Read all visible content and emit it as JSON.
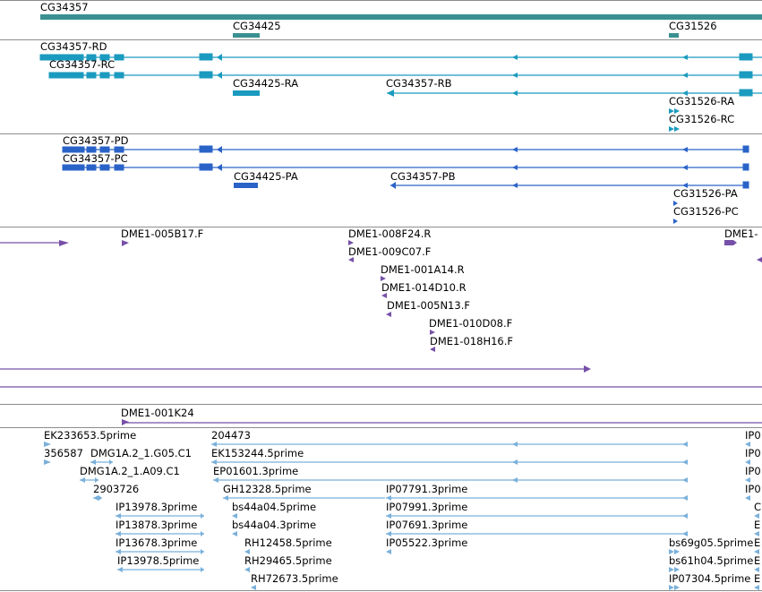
{
  "tracks": {
    "gene": {
      "color": "#3a9090",
      "features": [
        {
          "label": "CG34357"
        },
        {
          "label": "CG34425"
        },
        {
          "label": "CG31526"
        }
      ]
    },
    "transcripts": {
      "color": "#1a9abf",
      "features": [
        {
          "label": "CG34357-RD"
        },
        {
          "label": "CG34357-RC"
        },
        {
          "label": "CG34425-RA"
        },
        {
          "label": "CG34357-RB"
        },
        {
          "label": "CG31526-RA"
        },
        {
          "label": "CG31526-RC"
        }
      ]
    },
    "proteins": {
      "color": "#2a63c8",
      "features": [
        {
          "label": "CG34357-PD"
        },
        {
          "label": "CG34357-PC"
        },
        {
          "label": "CG34425-PA"
        },
        {
          "label": "CG34357-PB"
        },
        {
          "label": "CG31526-PA"
        },
        {
          "label": "CG31526-PC"
        }
      ]
    },
    "bac_ends": {
      "color": "#7650a8",
      "features": [
        {
          "label": "DME1-005B17.F"
        },
        {
          "label": "DME1-008F24.R"
        },
        {
          "label": "DME1-009C07.F"
        },
        {
          "label": "DME1-001A14.R"
        },
        {
          "label": "DME1-014D10.R"
        },
        {
          "label": "DME1-005N13.F"
        },
        {
          "label": "DME1-010D08.F"
        },
        {
          "label": "DME1-018H16.F"
        },
        {
          "label": "DME1-"
        },
        {
          "label": "DME1-001K24"
        }
      ]
    },
    "ests": {
      "color": "#7ab0da",
      "features": [
        {
          "label": "EK233653.5prime"
        },
        {
          "label": "204473"
        },
        {
          "label": "IP0"
        },
        {
          "label": "356587"
        },
        {
          "label": "DMG1A.2_1.G05.C1"
        },
        {
          "label": "EK153244.5prime"
        },
        {
          "label": "IP0"
        },
        {
          "label": "DMG1A.2_1.A09.C1"
        },
        {
          "label": "EP01601.3prime"
        },
        {
          "label": "IP0"
        },
        {
          "label": "2903726"
        },
        {
          "label": "GH12328.5prime"
        },
        {
          "label": "IP07791.3prime"
        },
        {
          "label": "IP0"
        },
        {
          "label": "IP13978.3prime"
        },
        {
          "label": "bs44a04.5prime"
        },
        {
          "label": "IP07991.3prime"
        },
        {
          "label": "C"
        },
        {
          "label": "IP13878.3prime"
        },
        {
          "label": "bs44a04.3prime"
        },
        {
          "label": "IP07691.3prime"
        },
        {
          "label": "E"
        },
        {
          "label": "IP13678.3prime"
        },
        {
          "label": "RH12458.5prime"
        },
        {
          "label": "IP05522.3prime"
        },
        {
          "label": "bs69g05.5prime"
        },
        {
          "label": "E"
        },
        {
          "label": "IP13978.5prime"
        },
        {
          "label": "RH29465.5prime"
        },
        {
          "label": "bs61h04.5prime"
        },
        {
          "label": "E"
        },
        {
          "label": "RH72673.5prime"
        },
        {
          "label": "IP07304.5prime"
        },
        {
          "label": "E"
        }
      ]
    }
  }
}
